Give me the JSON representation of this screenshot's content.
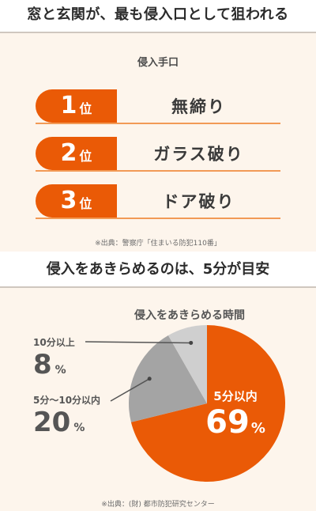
{
  "headline": "窓と玄関が、最も侵入口として狙われる",
  "entry": {
    "subtitle": "侵入手口",
    "rank_suffix": "位",
    "ranks": [
      {
        "num": "1",
        "label": "無締り"
      },
      {
        "num": "2",
        "label": "ガラス破り"
      },
      {
        "num": "3",
        "label": "ドア破り"
      }
    ],
    "source": "※出典：警察庁「住まいる防犯110番」"
  },
  "headline2": "侵入をあきらめるのは、5分が目安",
  "chart_data": {
    "type": "pie",
    "title": "侵入をあきらめる時間",
    "unit": "%",
    "slices": [
      {
        "name": "5分以内",
        "value": 69,
        "color": "#ea5a06"
      },
      {
        "name": "5分〜10分以内",
        "value": 20,
        "color": "#a4a4a4"
      },
      {
        "name": "10分以上",
        "value": 8,
        "color": "#cfcfcf"
      }
    ],
    "source": "※出典：(財) 都市防犯研究センター"
  }
}
